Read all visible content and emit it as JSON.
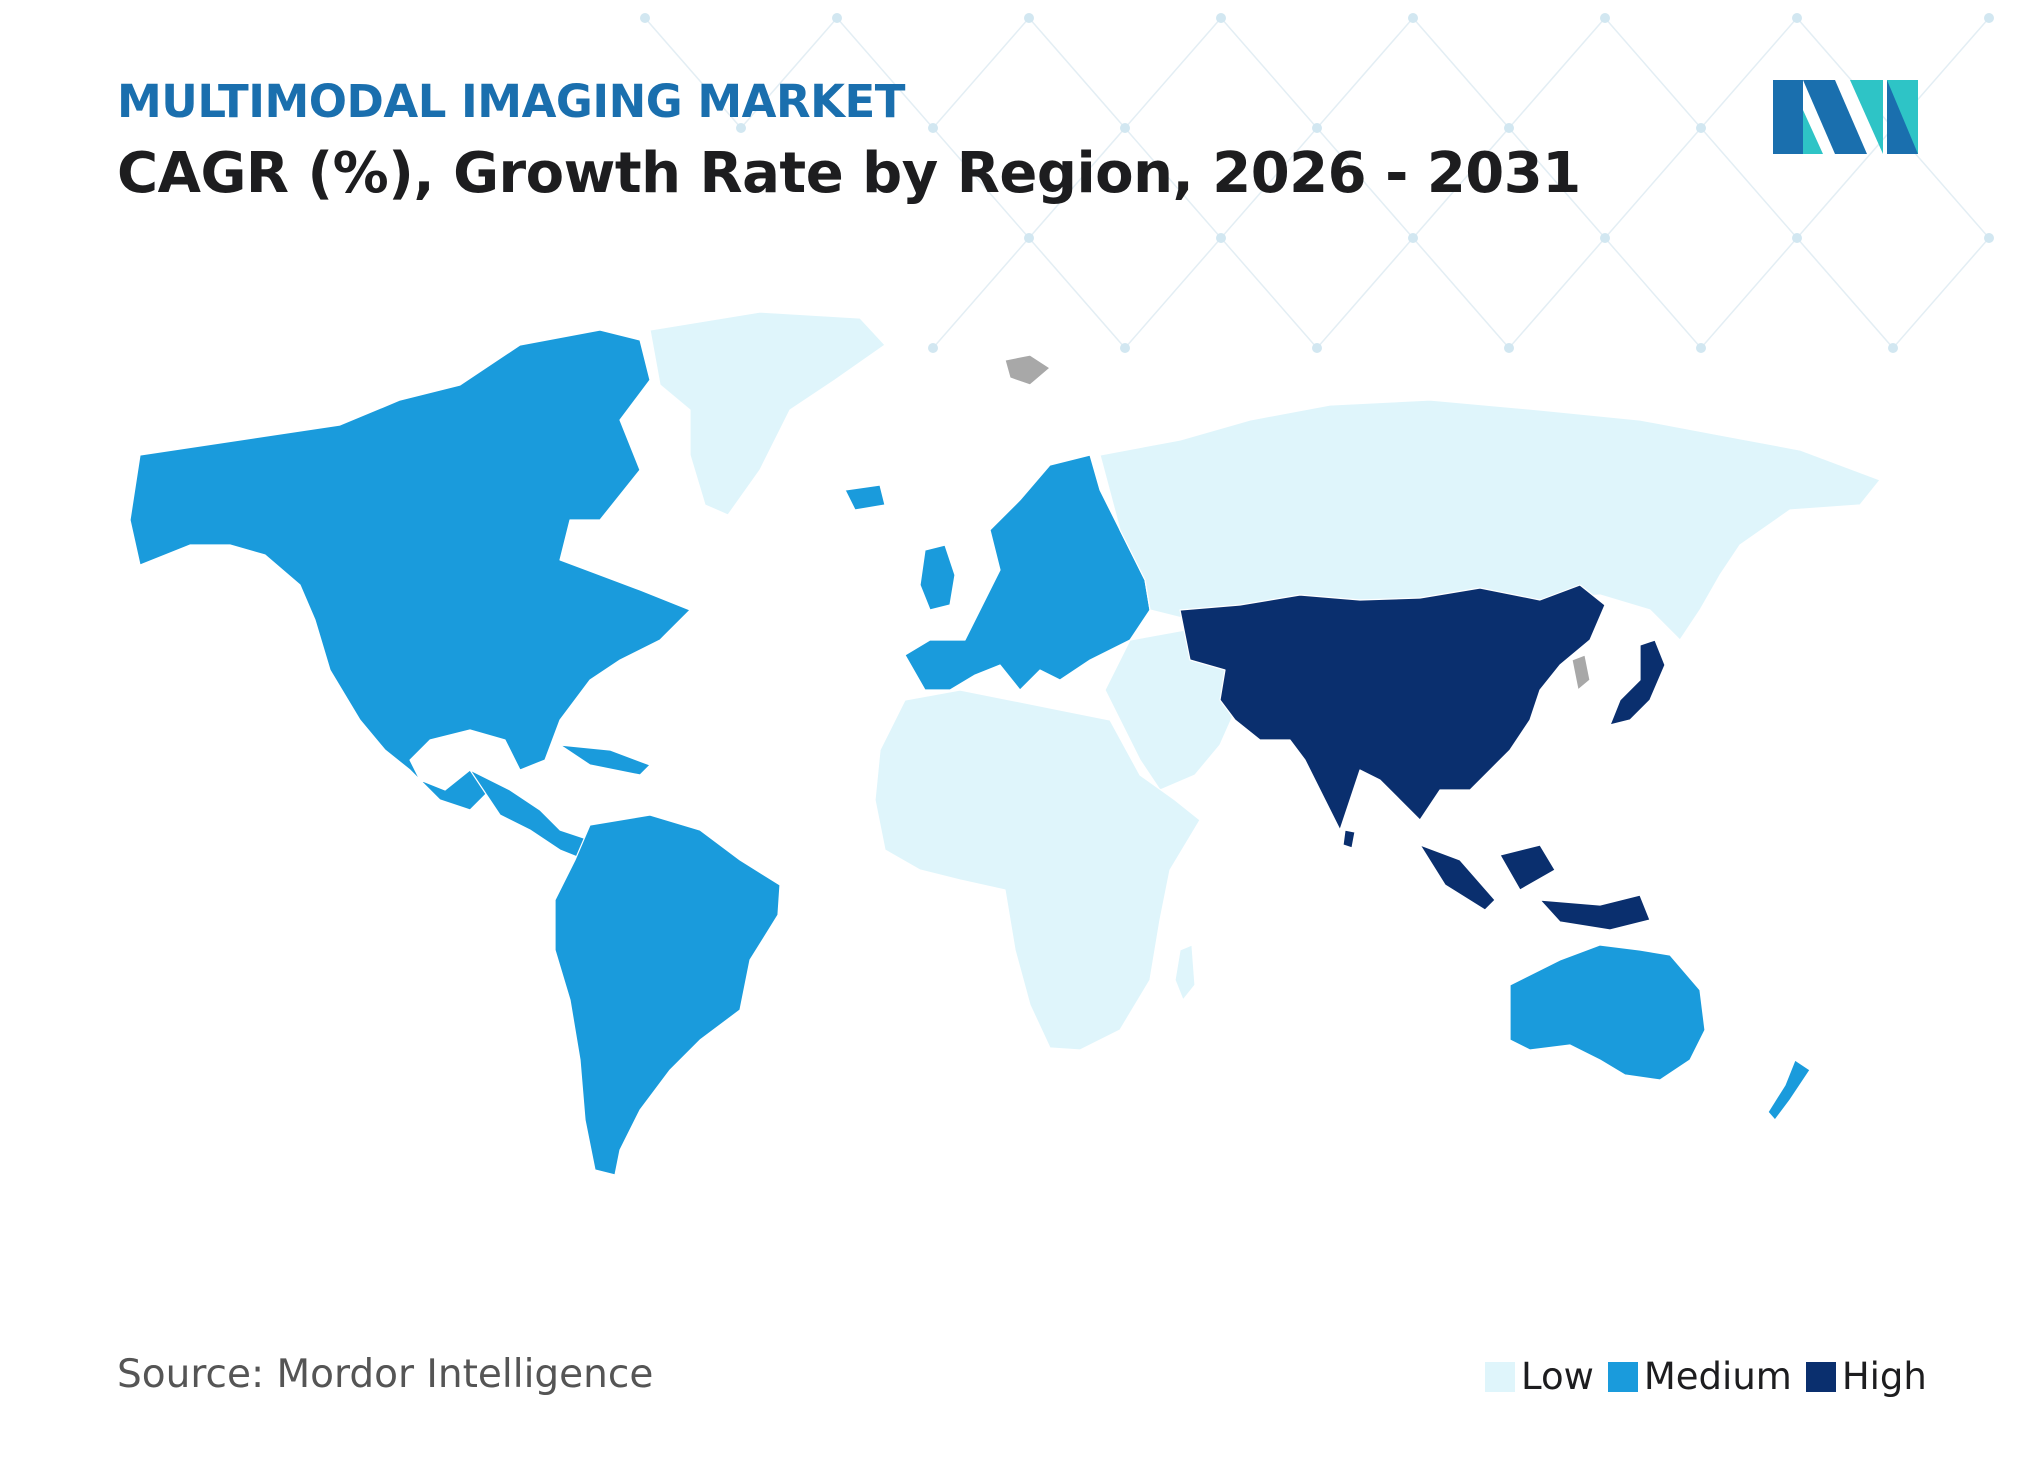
{
  "header": {
    "subtitle": "MULTIMODAL IMAGING MARKET",
    "title": "CAGR (%), Growth Rate by Region, 2026 - 2031"
  },
  "logo": {
    "icon": "mordor-intelligence-logo-icon",
    "colors": [
      "#1a6fae",
      "#2ec4c6"
    ]
  },
  "map": {
    "levels": {
      "low": "#dff5fb",
      "medium": "#1a9bdc",
      "high": "#0a2f6e",
      "no_data": "#a8a8a8"
    },
    "regions": [
      {
        "name": "North America",
        "level": "Medium"
      },
      {
        "name": "South America",
        "level": "Medium"
      },
      {
        "name": "Europe",
        "level": "Medium"
      },
      {
        "name": "Asia Pacific",
        "level": "High"
      },
      {
        "name": "Australia and New Zealand",
        "level": "Medium"
      },
      {
        "name": "Middle East and Africa",
        "level": "Low"
      },
      {
        "name": "Russia",
        "level": "Low"
      },
      {
        "name": "Greenland",
        "level": "Low"
      }
    ]
  },
  "footer": {
    "source": "Source: Mordor Intelligence"
  },
  "legend": [
    {
      "label": "Low",
      "color": "#dff5fb"
    },
    {
      "label": "Medium",
      "color": "#1a9bdc"
    },
    {
      "label": "High",
      "color": "#0a2f6e"
    }
  ]
}
